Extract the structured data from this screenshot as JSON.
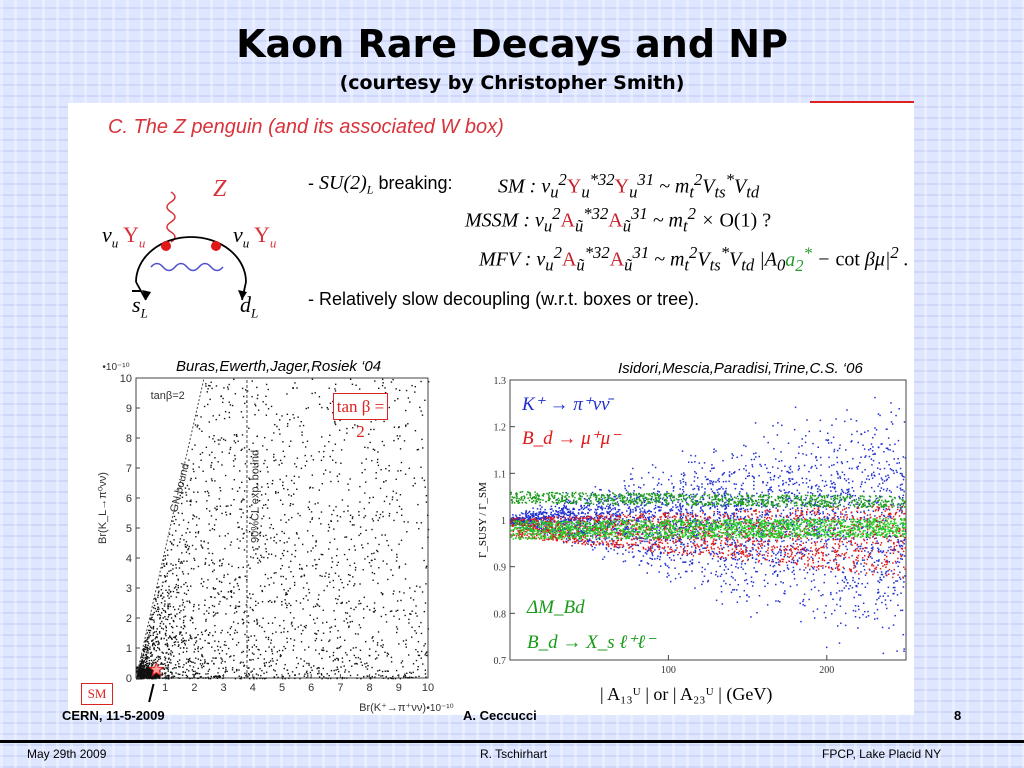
{
  "slide": {
    "title": "Kaon Rare Decays and NP",
    "subtitle": "(courtesy by  Christopher Smith)"
  },
  "panel": {
    "section_title": "C. The Z penguin (and its associated W box)",
    "bullet1_prefix": "- ",
    "bullet1_sym": "SU(2)",
    "bullet1_sub": "L",
    "bullet1_text": " breaking:",
    "formulas": [
      {
        "label": "SM",
        "expr": "v² Y*³² Y³¹ ~ m_t² V*_ts V_td"
      },
      {
        "label": "MSSM",
        "expr": "v² A*³² A³¹ ~ m_t² × O(1) ?"
      },
      {
        "label": "MFV",
        "expr": "v² A*³² A³¹ ~ m_t² V*_ts V_td |A₀a₂* − cot βμ|² ."
      }
    ],
    "bullet2": "- Relatively slow decoupling (w.r.t. boxes or tree).",
    "diagram": {
      "boson": "Z",
      "left_vertex": "v_u Y_u",
      "right_vertex": "v_u Y_u",
      "left_quark": "s̄_L",
      "right_quark": "d_L"
    }
  },
  "left_plot": {
    "caption": "Buras,Ewerth,Jager,Rosiek ‘04",
    "tan_box": "tan β = 2",
    "inner_label": "tanβ=2",
    "gn_label": "GN bound",
    "cl_label": "90%CL exp. bound",
    "sm_box": "SM",
    "x_ticks": [
      "1",
      "2",
      "3",
      "4",
      "5",
      "6",
      "7",
      "8",
      "9",
      "10"
    ],
    "y_ticks": [
      "0",
      "1",
      "2",
      "3",
      "4",
      "5",
      "6",
      "7",
      "8",
      "9",
      "10"
    ],
    "x_scale": "•10⁻¹⁰",
    "y_scale": "•10⁻¹⁰",
    "xlabel": "Br(K⁺→π⁺νν)",
    "ylabel": "Br(K_L→π⁰νν)"
  },
  "right_plot": {
    "caption": "Isidori,Mescia,Paradisi,Trine,C.S. ‘06",
    "y_ticks": [
      "0.7",
      "0.8",
      "0.9",
      "1",
      "1.1",
      "1.2",
      "1.3"
    ],
    "x_ticks": [
      "100",
      "200"
    ],
    "ylabel": "Γ_SUSY / Γ_SM",
    "xlabel": "| A₁₃ᵁ | or | A₂₃ᵁ | (GeV)",
    "legend_top": [
      "K⁺ → π⁺νν̄",
      "B_d → μ⁺μ⁻"
    ],
    "legend_bottom": [
      "ΔM_Bd",
      "B_d → X_s ℓ⁺ℓ⁻"
    ],
    "colors": {
      "blue": "#1f2fd0",
      "red": "#e01818",
      "green": "#22cc22",
      "dkgreen": "#1a9a1a"
    }
  },
  "slide_footer": {
    "left": "CERN, 11-5-2009",
    "center": "A. Ceccucci",
    "right": "8"
  },
  "page_footer": {
    "left": "May 29th  2009",
    "center": "R. Tschirhart",
    "right": "FPCP, Lake Placid NY"
  }
}
